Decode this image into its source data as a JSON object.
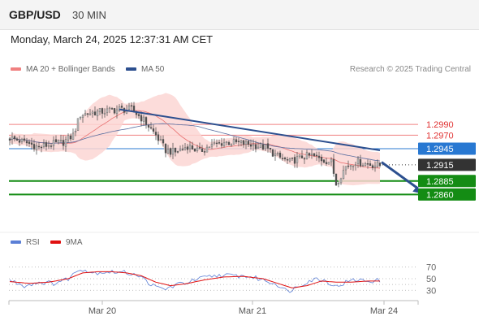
{
  "header": {
    "symbol": "GBP/USD",
    "timeframe": "30 MIN"
  },
  "datetime": "Monday, March 24, 2025 12:37:31 AM CET",
  "legend": {
    "items": [
      {
        "label": "MA 20 + Bollinger Bands",
        "color": "#f08080"
      },
      {
        "label": "MA 50",
        "color": "#2c4f8f"
      }
    ],
    "copyright": "Research © 2025 Trading Central"
  },
  "rsi_legend": {
    "items": [
      {
        "label": "RSI",
        "color": "#5b7fd6"
      },
      {
        "label": "9MA",
        "color": "#e01010"
      }
    ]
  },
  "colors": {
    "resistance": "#f08080",
    "pivot": "#2878d2",
    "support": "#148c14",
    "last_price": "#333333",
    "trendline": "#2c4f8f",
    "candle_up": "#bcbcbc",
    "candle_down": "#555555",
    "bollinger_fill": "#fbd6d4"
  },
  "chart_data": [
    {
      "type": "candlestick",
      "x_ticks": [
        "Mar 20",
        "Mar 21",
        "Mar 24"
      ],
      "price_levels": [
        {
          "value": 1.299,
          "label": "1.2990",
          "kind": "resistance"
        },
        {
          "value": 1.297,
          "label": "1.2970",
          "kind": "resistance"
        },
        {
          "value": 1.2945,
          "label": "1.2945",
          "kind": "pivot"
        },
        {
          "value": 1.2915,
          "label": "1.2915",
          "kind": "last"
        },
        {
          "value": 1.2885,
          "label": "1.2885",
          "kind": "support"
        },
        {
          "value": 1.286,
          "label": "1.2860",
          "kind": "support"
        }
      ],
      "ylim": [
        1.285,
        1.304
      ],
      "price_anchors": [
        [
          0,
          1.2965
        ],
        [
          6,
          1.2957
        ],
        [
          12,
          1.2948
        ],
        [
          16,
          1.2952
        ],
        [
          22,
          1.2957
        ],
        [
          26,
          1.297
        ],
        [
          29,
          1.3008
        ],
        [
          34,
          1.3012
        ],
        [
          40,
          1.3015
        ],
        [
          45,
          1.3018
        ],
        [
          50,
          1.3018
        ],
        [
          55,
          1.2998
        ],
        [
          60,
          1.297
        ],
        [
          64,
          1.2942
        ],
        [
          68,
          1.2938
        ],
        [
          73,
          1.295
        ],
        [
          78,
          1.294
        ],
        [
          82,
          1.295
        ],
        [
          88,
          1.2957
        ],
        [
          95,
          1.2955
        ],
        [
          100,
          1.2952
        ],
        [
          105,
          1.2947
        ],
        [
          110,
          1.293
        ],
        [
          115,
          1.292
        ],
        [
          120,
          1.293
        ],
        [
          124,
          1.2932
        ],
        [
          128,
          1.2925
        ],
        [
          132,
          1.292
        ],
        [
          134,
          1.288
        ],
        [
          138,
          1.2912
        ],
        [
          142,
          1.2921
        ],
        [
          147,
          1.2916
        ],
        [
          152,
          1.2914
        ]
      ],
      "trendline": {
        "start": [
          45,
          1.3018
        ],
        "end": [
          152,
          1.2942
        ]
      },
      "projection": {
        "start": [
          152,
          1.292
        ],
        "end": [
          160,
          1.2862
        ]
      }
    },
    {
      "type": "line",
      "name": "RSI",
      "ylim": [
        15,
        85
      ],
      "y_ticks": [
        70,
        50,
        30
      ],
      "rsi_anchors": [
        [
          0,
          47
        ],
        [
          6,
          38
        ],
        [
          12,
          44
        ],
        [
          18,
          42
        ],
        [
          24,
          50
        ],
        [
          29,
          68
        ],
        [
          34,
          60
        ],
        [
          40,
          62
        ],
        [
          46,
          61
        ],
        [
          52,
          58
        ],
        [
          56,
          46
        ],
        [
          60,
          35
        ],
        [
          64,
          32
        ],
        [
          68,
          39
        ],
        [
          74,
          45
        ],
        [
          80,
          52
        ],
        [
          86,
          56
        ],
        [
          92,
          55
        ],
        [
          98,
          54
        ],
        [
          104,
          48
        ],
        [
          110,
          40
        ],
        [
          114,
          28
        ],
        [
          118,
          36
        ],
        [
          122,
          45
        ],
        [
          126,
          50
        ],
        [
          130,
          46
        ],
        [
          134,
          36
        ],
        [
          138,
          44
        ],
        [
          142,
          48
        ],
        [
          147,
          46
        ],
        [
          152,
          47
        ]
      ],
      "ma9_anchors": [
        [
          0,
          45
        ],
        [
          8,
          42
        ],
        [
          16,
          44
        ],
        [
          24,
          50
        ],
        [
          30,
          60
        ],
        [
          36,
          62
        ],
        [
          42,
          62
        ],
        [
          48,
          60
        ],
        [
          54,
          55
        ],
        [
          60,
          44
        ],
        [
          66,
          38
        ],
        [
          72,
          41
        ],
        [
          80,
          48
        ],
        [
          88,
          53
        ],
        [
          96,
          54
        ],
        [
          104,
          50
        ],
        [
          110,
          42
        ],
        [
          116,
          34
        ],
        [
          122,
          38
        ],
        [
          128,
          46
        ],
        [
          134,
          44
        ],
        [
          140,
          44
        ],
        [
          147,
          46
        ],
        [
          152,
          46
        ]
      ]
    }
  ]
}
